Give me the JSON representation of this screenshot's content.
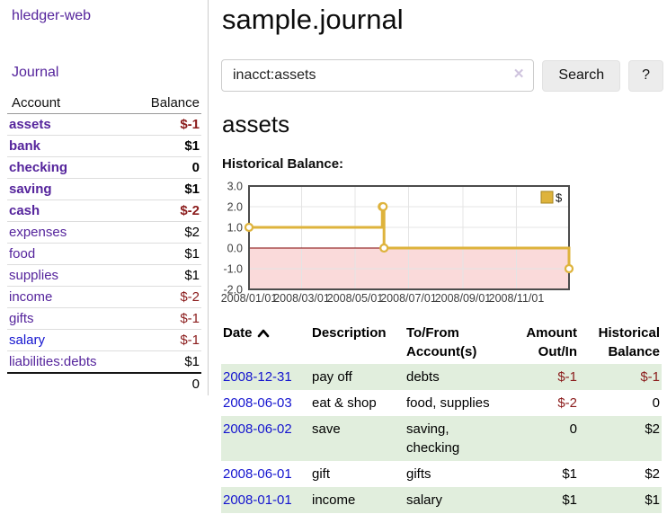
{
  "app": {
    "brand": "hledger-web"
  },
  "sidebar": {
    "journal_link": "Journal",
    "accounts": {
      "header_account": "Account",
      "header_balance": "Balance",
      "rows": [
        {
          "name": "assets",
          "balance": "$-1",
          "indent": 1,
          "bold": true,
          "neg": true,
          "blue": false
        },
        {
          "name": "bank",
          "balance": "$1",
          "indent": 2,
          "bold": true,
          "neg": false,
          "blue": false
        },
        {
          "name": "checking",
          "balance": "0",
          "indent": 3,
          "bold": true,
          "neg": false,
          "blue": false
        },
        {
          "name": "saving",
          "balance": "$1",
          "indent": 3,
          "bold": true,
          "neg": false,
          "blue": false
        },
        {
          "name": "cash",
          "balance": "$-2",
          "indent": 2,
          "bold": true,
          "neg": true,
          "blue": false
        },
        {
          "name": "expenses",
          "balance": "$2",
          "indent": 1,
          "bold": false,
          "neg": false,
          "blue": false
        },
        {
          "name": "food",
          "balance": "$1",
          "indent": 2,
          "bold": false,
          "neg": false,
          "blue": false
        },
        {
          "name": "supplies",
          "balance": "$1",
          "indent": 2,
          "bold": false,
          "neg": false,
          "blue": false
        },
        {
          "name": "income",
          "balance": "$-2",
          "indent": 1,
          "bold": false,
          "neg": true,
          "blue": false
        },
        {
          "name": "gifts",
          "balance": "$-1",
          "indent": 2,
          "bold": false,
          "neg": true,
          "blue": false
        },
        {
          "name": "salary",
          "balance": "$-1",
          "indent": 2,
          "bold": false,
          "neg": true,
          "blue": true
        },
        {
          "name": "liabilities:debts",
          "balance": "$1",
          "indent": 1,
          "bold": false,
          "neg": false,
          "blue": false
        }
      ],
      "total": "0"
    }
  },
  "main": {
    "title": "sample.journal",
    "search": {
      "value": "inacct:assets",
      "clear_icon": "✕",
      "search_button": "Search",
      "help_button": "?"
    },
    "account_heading": "assets",
    "section_heading": "Historical Balance:"
  },
  "chart_data": {
    "type": "line",
    "title": "Historical Balance:",
    "legend": {
      "label": "$",
      "position": "top-right"
    },
    "series": [
      {
        "name": "$",
        "color": "#deb33c",
        "style": "step",
        "points": [
          {
            "date": "2008-01-01",
            "value": 1.0
          },
          {
            "date": "2008-06-01",
            "value": 2.0
          },
          {
            "date": "2008-06-02",
            "value": 2.0
          },
          {
            "date": "2008-06-03",
            "value": 0.0
          },
          {
            "date": "2008-12-31",
            "value": -1.0
          }
        ]
      }
    ],
    "x_range": [
      "2008-01-01",
      "2008-12-31"
    ],
    "ylim": [
      -2.0,
      3.0
    ],
    "y_ticks": [
      3.0,
      2.0,
      1.0,
      0.0,
      -1.0,
      -2.0
    ],
    "x_ticks": [
      {
        "date": "2008-01-01",
        "label": "2008/01/01"
      },
      {
        "date": "2008-03-01",
        "label": "2008/03/01"
      },
      {
        "date": "2008-05-01",
        "label": "2008/05/01"
      },
      {
        "date": "2008-07-01",
        "label": "2008/07/01"
      },
      {
        "date": "2008-09-01",
        "label": "2008/09/01"
      },
      {
        "date": "2008-11-01",
        "label": "2008/11/01"
      }
    ],
    "grid": true,
    "zero_line_color": "#800000",
    "negative_region_color": "#fadada",
    "border_color": "#4c4c4c",
    "grid_color": "#e4e4e4"
  },
  "register": {
    "headers": {
      "date": "Date",
      "description": "Description",
      "accounts": "To/From Account(s)",
      "amount": "Amount Out/In",
      "balance": "Historical Balance"
    },
    "rows": [
      {
        "date": "2008-12-31",
        "description": "pay off",
        "accounts": "debts",
        "amount": "$-1",
        "amount_neg": true,
        "balance": "$-1",
        "balance_neg": true
      },
      {
        "date": "2008-06-03",
        "description": "eat & shop",
        "accounts": "food, supplies",
        "amount": "$-2",
        "amount_neg": true,
        "balance": "0",
        "balance_neg": false
      },
      {
        "date": "2008-06-02",
        "description": "save",
        "accounts": "saving, checking",
        "amount": "0",
        "amount_neg": false,
        "balance": "$2",
        "balance_neg": false
      },
      {
        "date": "2008-06-01",
        "description": "gift",
        "accounts": "gifts",
        "amount": "$1",
        "amount_neg": false,
        "balance": "$2",
        "balance_neg": false
      },
      {
        "date": "2008-01-01",
        "description": "income",
        "accounts": "salary",
        "amount": "$1",
        "amount_neg": false,
        "balance": "$1",
        "balance_neg": false
      }
    ]
  },
  "colors": {
    "link_purple": "#55249c",
    "link_blue": "#1414cf",
    "negative_red": "#8b1c1c",
    "row_green": "#e1eedd",
    "accent_gold": "#deb33c"
  }
}
